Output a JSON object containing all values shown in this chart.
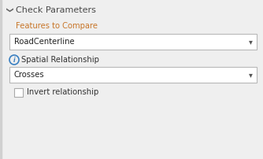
{
  "bg_color": "#efefef",
  "title": "Check Parameters",
  "title_color": "#4a4a4a",
  "title_fontsize": 8.0,
  "chevron_color": "#666666",
  "left_bar_color": "#d0d0d0",
  "label1": "Features to Compare",
  "label1_color": "#c8762a",
  "label1_fontsize": 7.2,
  "dropdown1_text": "RoadCenterline",
  "dropdown1_bg": "#ffffff",
  "dropdown1_border": "#b8b8b8",
  "dropdown1_text_color": "#222222",
  "dropdown1_fontsize": 7.2,
  "dropdown_arrow_color": "#555555",
  "info_circle_color": "#3a7fc1",
  "label2": "Spatial Relationship",
  "label2_color": "#333333",
  "label2_fontsize": 7.2,
  "dropdown2_text": "Crosses",
  "dropdown2_bg": "#ffffff",
  "dropdown2_border": "#b8b8b8",
  "dropdown2_text_color": "#222222",
  "dropdown2_fontsize": 7.2,
  "checkbox_bg": "#ffffff",
  "checkbox_border": "#aaaaaa",
  "label3": "Invert relationship",
  "label3_color": "#333333",
  "label3_fontsize": 7.2,
  "fig_w": 3.34,
  "fig_h": 2.02,
  "dpi": 100
}
